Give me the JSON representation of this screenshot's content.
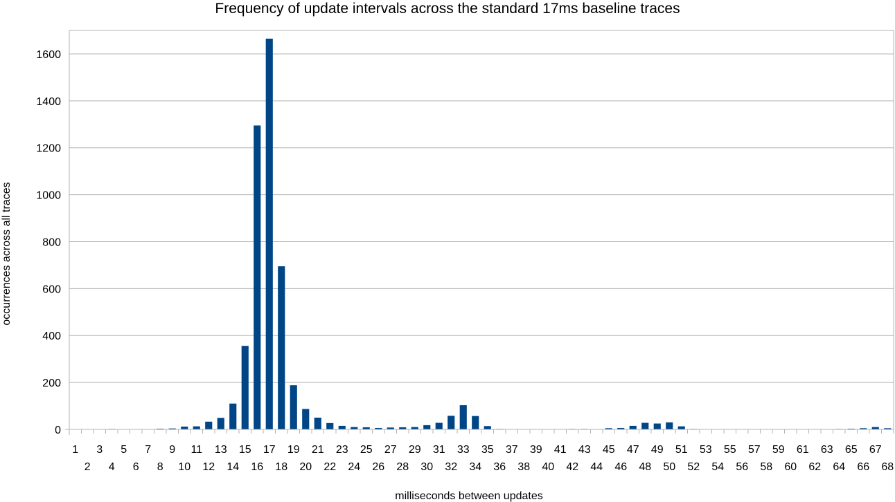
{
  "chart_data": {
    "type": "bar",
    "title": "Frequency of update intervals across the standard 17ms baseline traces",
    "xlabel": "milliseconds between updates",
    "ylabel": "occurrences across all traces",
    "ylim": [
      0,
      1700
    ],
    "yticks": [
      0,
      200,
      400,
      600,
      800,
      1000,
      1200,
      1400,
      1600
    ],
    "grid": true,
    "legend": "none",
    "bar_color": "#004586",
    "categories": [
      "1",
      "2",
      "3",
      "4",
      "5",
      "6",
      "7",
      "8",
      "9",
      "10",
      "11",
      "12",
      "13",
      "14",
      "15",
      "16",
      "17",
      "18",
      "19",
      "20",
      "21",
      "22",
      "23",
      "24",
      "25",
      "26",
      "27",
      "28",
      "29",
      "30",
      "31",
      "32",
      "33",
      "34",
      "35",
      "36",
      "37",
      "38",
      "39",
      "40",
      "41",
      "42",
      "43",
      "44",
      "45",
      "46",
      "47",
      "48",
      "49",
      "50",
      "51",
      "52",
      "53",
      "54",
      "55",
      "56",
      "57",
      "58",
      "59",
      "60",
      "61",
      "62",
      "63",
      "64",
      "65",
      "66",
      "67",
      "68"
    ],
    "values": [
      0,
      0,
      1,
      2,
      1,
      1,
      1,
      3,
      4,
      12,
      13,
      33,
      49,
      110,
      356,
      1295,
      1665,
      695,
      188,
      87,
      50,
      27,
      15,
      10,
      9,
      6,
      8,
      9,
      10,
      18,
      28,
      58,
      103,
      57,
      14,
      2,
      0,
      0,
      0,
      1,
      1,
      2,
      2,
      1,
      5,
      6,
      15,
      28,
      25,
      30,
      13,
      2,
      0,
      0,
      1,
      0,
      0,
      0,
      0,
      0,
      1,
      0,
      0,
      2,
      3,
      5,
      10,
      5
    ]
  }
}
